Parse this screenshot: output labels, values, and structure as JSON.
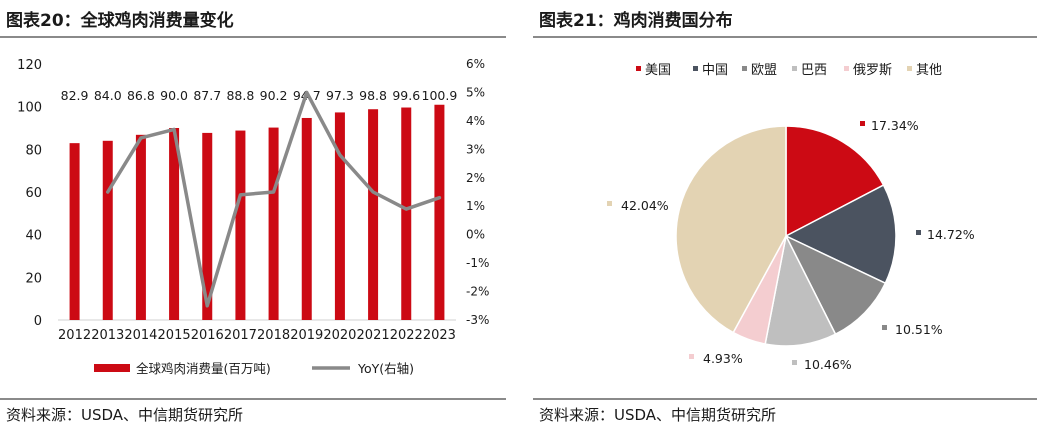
{
  "left": {
    "title": "图表20：全球鸡肉消费量变化",
    "source": "资料来源：USDA、中信期货研究所"
  },
  "right": {
    "title": "图表21：鸡肉消费国分布",
    "source": "资料来源：USDA、中信期货研究所"
  },
  "chart_data": [
    {
      "type": "bar",
      "categories": [
        "2012",
        "2013",
        "2014",
        "2015",
        "2016",
        "2017",
        "2018",
        "2019",
        "2020",
        "2021",
        "2022",
        "2023"
      ],
      "series": [
        {
          "name": "全球鸡肉消费量(百万吨)",
          "type": "bar",
          "axis": "left",
          "color": "#cc0a14",
          "values": [
            82.9,
            84.0,
            86.8,
            90.0,
            87.7,
            88.8,
            90.2,
            94.7,
            97.3,
            98.8,
            99.6,
            100.9
          ],
          "labels": [
            "82.9",
            "84.0",
            "86.8",
            "90.0",
            "87.7",
            "88.8",
            "90.2",
            "94.7",
            "97.3",
            "98.8",
            "99.6",
            "100.9"
          ]
        },
        {
          "name": "YoY(右轴)",
          "type": "line",
          "axis": "right",
          "color": "#898989",
          "values": [
            null,
            1.5,
            3.4,
            3.7,
            -2.5,
            1.4,
            1.5,
            5.0,
            2.8,
            1.5,
            0.9,
            1.3
          ]
        }
      ],
      "ylim": [
        0,
        120
      ],
      "yticks": [
        "0",
        "20",
        "40",
        "60",
        "80",
        "100",
        "120"
      ],
      "y2lim": [
        -3,
        6
      ],
      "y2ticks": [
        "-3%",
        "-2%",
        "-1%",
        "0%",
        "1%",
        "2%",
        "3%",
        "4%",
        "5%",
        "6%"
      ],
      "legend_position": "bottom"
    },
    {
      "type": "pie",
      "slices": [
        {
          "name": "美国",
          "value": 17.34,
          "label": "17.34%",
          "color": "#cc0a14"
        },
        {
          "name": "中国",
          "value": 14.72,
          "label": "14.72%",
          "color": "#4b5360"
        },
        {
          "name": "欧盟",
          "value": 10.51,
          "label": "10.51%",
          "color": "#898989"
        },
        {
          "name": "巴西",
          "value": 10.46,
          "label": "10.46%",
          "color": "#bfbfbf"
        },
        {
          "name": "俄罗斯",
          "value": 4.93,
          "label": "4.93%",
          "color": "#f4cdd0"
        },
        {
          "name": "其他",
          "value": 42.04,
          "label": "42.04%",
          "color": "#e3d3b3"
        }
      ],
      "legend_position": "top"
    }
  ]
}
